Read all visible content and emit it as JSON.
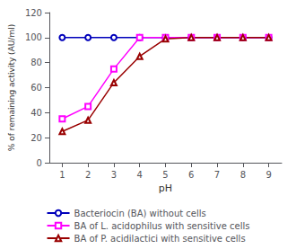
{
  "chart_data": {
    "type": "line",
    "xlabel": "pH",
    "ylabel": "% of remaining activity (AU/ml)",
    "x": [
      1,
      2,
      3,
      4,
      5,
      6,
      7,
      8,
      9
    ],
    "series": [
      {
        "name": "Bacteriocin (BA) without cells",
        "color": "#0000bb",
        "marker": "circle",
        "values": [
          100,
          100,
          100,
          100,
          100,
          100,
          100,
          100,
          100
        ]
      },
      {
        "name": "BA of L. acidophilus with sensitive cells",
        "color": "#ff00ff",
        "marker": "square",
        "values": [
          35,
          45,
          75,
          100,
          100,
          100,
          100,
          100,
          100
        ]
      },
      {
        "name": "BA of P. acidilactici with sensitive cells",
        "color": "#990000",
        "marker": "triangle",
        "values": [
          25,
          34,
          64,
          85,
          99,
          100,
          100,
          100,
          100
        ]
      }
    ],
    "xlim": [
      0.5,
      9.5
    ],
    "ylim": [
      0,
      120
    ],
    "xticks": [
      1,
      2,
      3,
      4,
      5,
      6,
      7,
      8,
      9
    ],
    "yticks": [
      0,
      20,
      40,
      60,
      80,
      100,
      120
    ],
    "grid": false,
    "legend": "bottom"
  }
}
